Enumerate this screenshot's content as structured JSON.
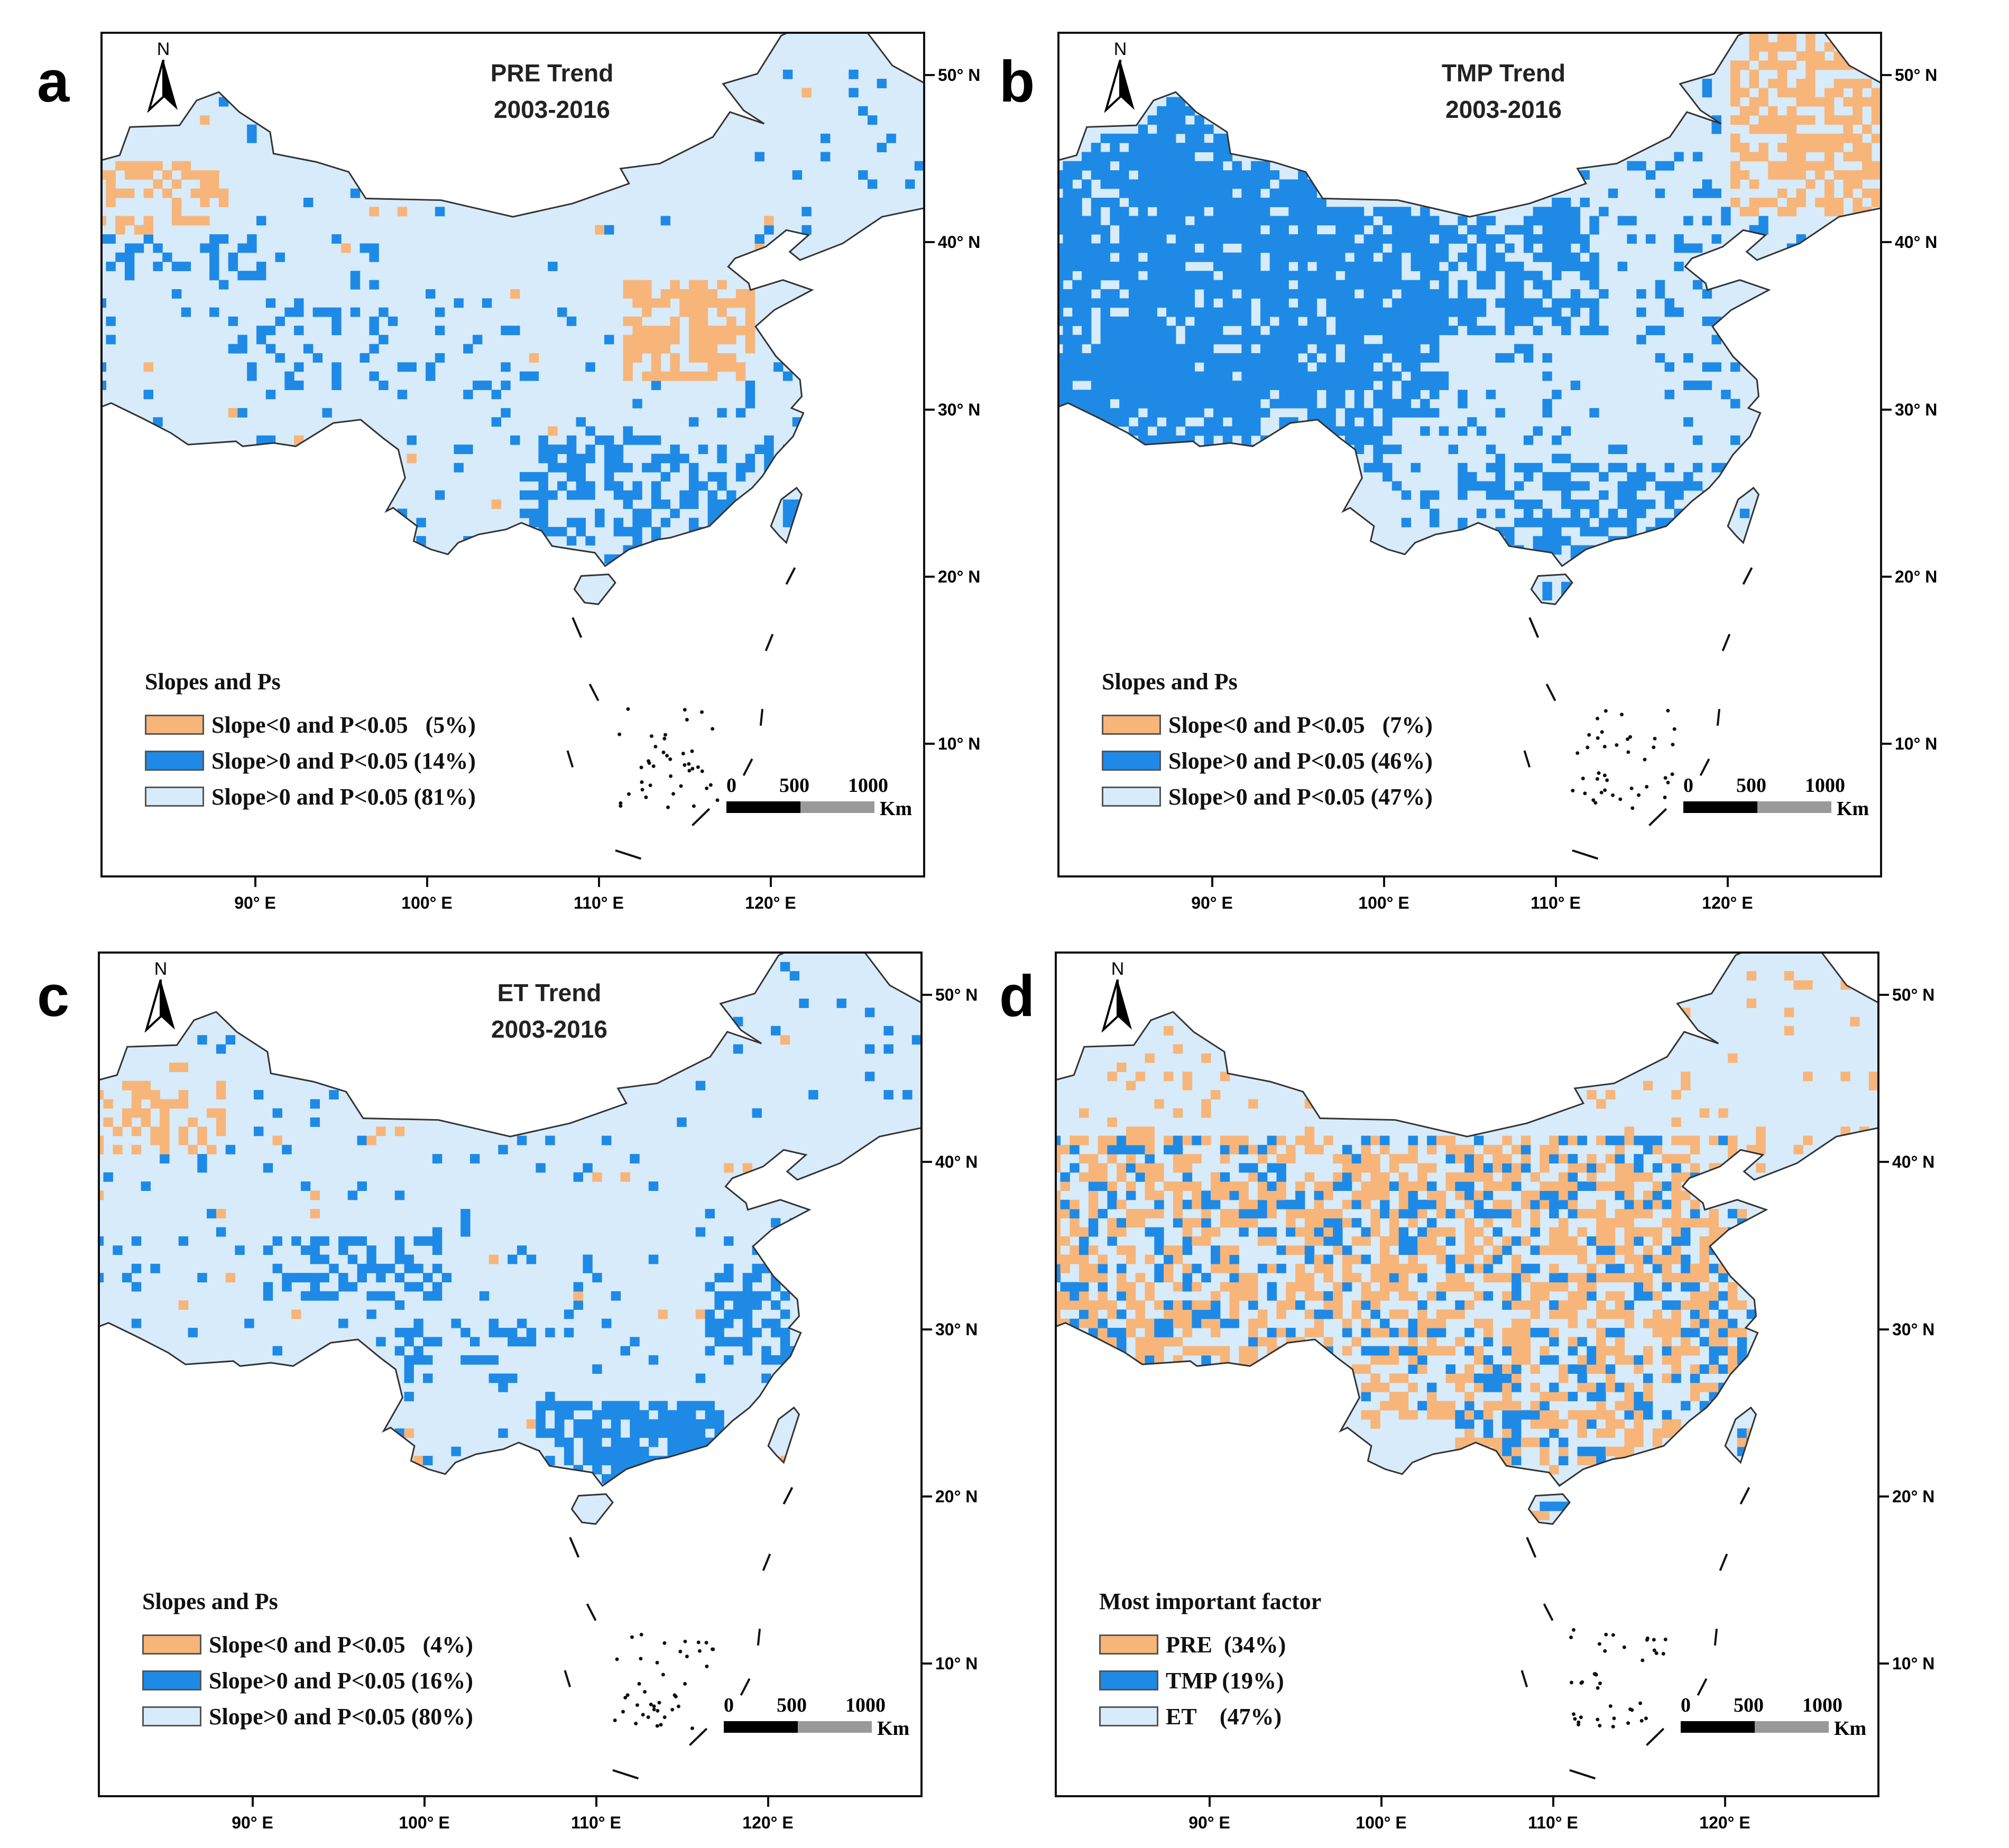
{
  "colors": {
    "orange": "#f7b57a",
    "blue": "#1e8ae6",
    "light": "#d7ebfa",
    "border": "#333333"
  },
  "panels": [
    {
      "letter": "a",
      "title_line1": "PRE Trend",
      "title_line2": "2003-2016",
      "legend_title": "Slopes and Ps",
      "legend": [
        {
          "label": "Slope<0 and P<0.05   (5%)",
          "color": "orange"
        },
        {
          "label": "Slope>0 and P<0.05 (14%)",
          "color": "blue"
        },
        {
          "label": "Slope>0 and P<0.05 (81%)",
          "color": "light"
        }
      ],
      "pattern": {
        "mode": "trend",
        "blue_frac": 0.14,
        "orange_frac": 0.05
      }
    },
    {
      "letter": "b",
      "title_line1": "TMP Trend",
      "title_line2": "2003-2016",
      "legend_title": "Slopes and Ps",
      "legend": [
        {
          "label": "Slope<0 and P<0.05   (7%)",
          "color": "orange"
        },
        {
          "label": "Slope>0 and P<0.05 (46%)",
          "color": "blue"
        },
        {
          "label": "Slope>0 and P<0.05 (47%)",
          "color": "light"
        }
      ],
      "pattern": {
        "mode": "tmp",
        "blue_frac": 0.46,
        "orange_frac": 0.07
      }
    },
    {
      "letter": "c",
      "title_line1": "ET Trend",
      "title_line2": "2003-2016",
      "legend_title": "Slopes and Ps",
      "legend": [
        {
          "label": "Slope<0 and P<0.05   (4%)",
          "color": "orange"
        },
        {
          "label": "Slope>0 and P<0.05 (16%)",
          "color": "blue"
        },
        {
          "label": "Slope>0 and P<0.05 (80%)",
          "color": "light"
        }
      ],
      "pattern": {
        "mode": "et",
        "blue_frac": 0.16,
        "orange_frac": 0.04
      }
    },
    {
      "letter": "d",
      "title_line1": "",
      "title_line2": "",
      "legend_title": "Most important factor",
      "legend": [
        {
          "label": "PRE  (34%)",
          "color": "orange"
        },
        {
          "label": "TMP (19%)",
          "color": "blue"
        },
        {
          "label": "ET    (47%)",
          "color": "light"
        }
      ],
      "pattern": {
        "mode": "factor",
        "blue_frac": 0.19,
        "orange_frac": 0.34
      }
    }
  ],
  "north_label": "N",
  "scale": {
    "labels": [
      "0",
      "500",
      "1000"
    ],
    "unit": "Km"
  },
  "lat_labels": [
    "50° N",
    "40° N",
    "30° N",
    "20° N",
    "10° N"
  ],
  "lon_labels": [
    "90° E",
    "100° E",
    "110° E",
    "120° E"
  ]
}
